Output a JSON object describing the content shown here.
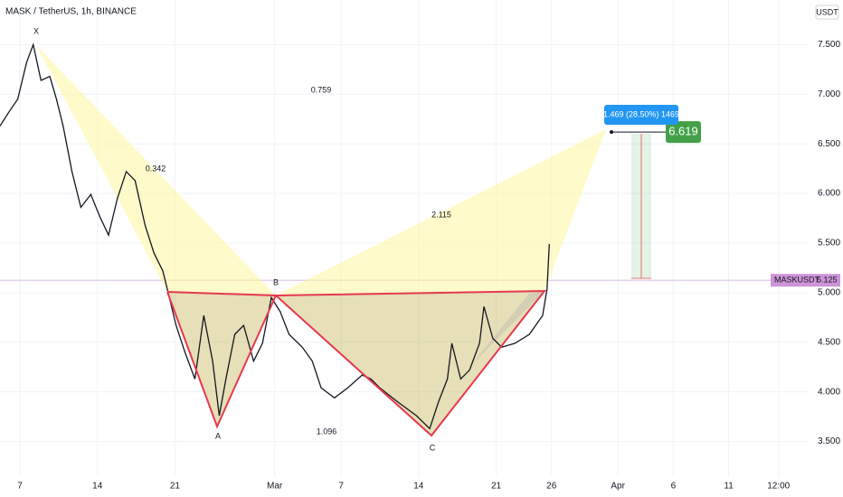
{
  "chart_data": {
    "type": "line",
    "title": "MASK / TetherUS, 1h, BINANCE",
    "currency": "USDT",
    "symbol": "MASKUSDT",
    "last_price": 5.125,
    "target_price": 6.619,
    "projection_label": "1.469 (28.50%) 1469",
    "pattern_points": [
      "X",
      "A",
      "B",
      "C"
    ],
    "pattern_ratios": [
      0.759,
      0.342,
      2.115,
      1.096
    ],
    "series": [
      {
        "name": "MASKUSDT",
        "color": "#131722",
        "x": [
          5.2,
          6.0,
          6.8,
          7.6,
          8.2,
          8.9,
          9.7,
          10.3,
          10.9,
          11.7,
          12.5,
          13.4,
          14.2,
          15.0,
          15.8,
          16.6,
          17.4,
          18.3,
          19.1,
          19.9,
          20.3,
          21.1,
          21.9,
          22.8,
          23.6,
          24.4,
          25.0,
          25.6,
          26.4,
          27.2,
          28.1,
          28.9,
          29.7,
          30.5,
          31.3,
          32.5,
          33.4,
          34.2,
          35.4,
          36.6,
          37.9,
          38.7,
          39.5,
          41.1,
          42.8,
          44.0,
          44.8,
          45.6,
          46.0,
          46.8,
          47.6,
          48.5,
          48.9,
          49.7,
          50.5,
          51.7,
          53.0,
          54.2,
          54.6,
          54.8
        ],
        "values": [
          6.68,
          6.82,
          6.95,
          7.32,
          7.5,
          7.14,
          7.18,
          6.95,
          6.68,
          6.22,
          5.86,
          5.99,
          5.77,
          5.58,
          5.95,
          6.22,
          6.13,
          5.68,
          5.4,
          5.22,
          5.04,
          4.67,
          4.4,
          4.13,
          4.77,
          4.31,
          3.76,
          4.13,
          4.58,
          4.67,
          4.31,
          4.49,
          4.95,
          4.81,
          4.58,
          4.45,
          4.31,
          4.04,
          3.94,
          4.04,
          4.17,
          4.13,
          4.04,
          3.9,
          3.76,
          3.63,
          3.9,
          4.13,
          4.49,
          4.13,
          4.22,
          4.49,
          4.86,
          4.54,
          4.45,
          4.49,
          4.58,
          4.77,
          5.04,
          5.49
        ]
      }
    ],
    "xlim": [
      5.2,
      78.3
    ],
    "xticks": [
      7,
      14,
      21,
      {
        "value": 30,
        "label": "Mar"
      },
      {
        "value": 36,
        "label": "7"
      },
      {
        "value": 43,
        "label": "14"
      },
      {
        "value": 50,
        "label": "21"
      },
      {
        "value": 55,
        "label": "26"
      },
      {
        "value": 61,
        "label": "Apr"
      },
      {
        "value": 66,
        "label": "6"
      },
      {
        "value": 71,
        "label": "11"
      },
      {
        "value": 75.5,
        "label": "12:00"
      }
    ],
    "ylim": [
      3.15,
      7.95
    ],
    "yticks": [
      {
        "value": 3.5,
        "label": "3.500"
      },
      {
        "value": 4,
        "label": "4.000"
      },
      {
        "value": 4.5,
        "label": "4.500"
      },
      {
        "value": 5,
        "label": "5.000"
      },
      {
        "value": 5.5,
        "label": "5.500"
      },
      {
        "value": 6,
        "label": "6.000"
      },
      {
        "value": 6.5,
        "label": "6.500"
      },
      {
        "value": 7,
        "label": "7.000"
      },
      {
        "value": 7.5,
        "label": "7.500"
      }
    ],
    "grid": true
  }
}
